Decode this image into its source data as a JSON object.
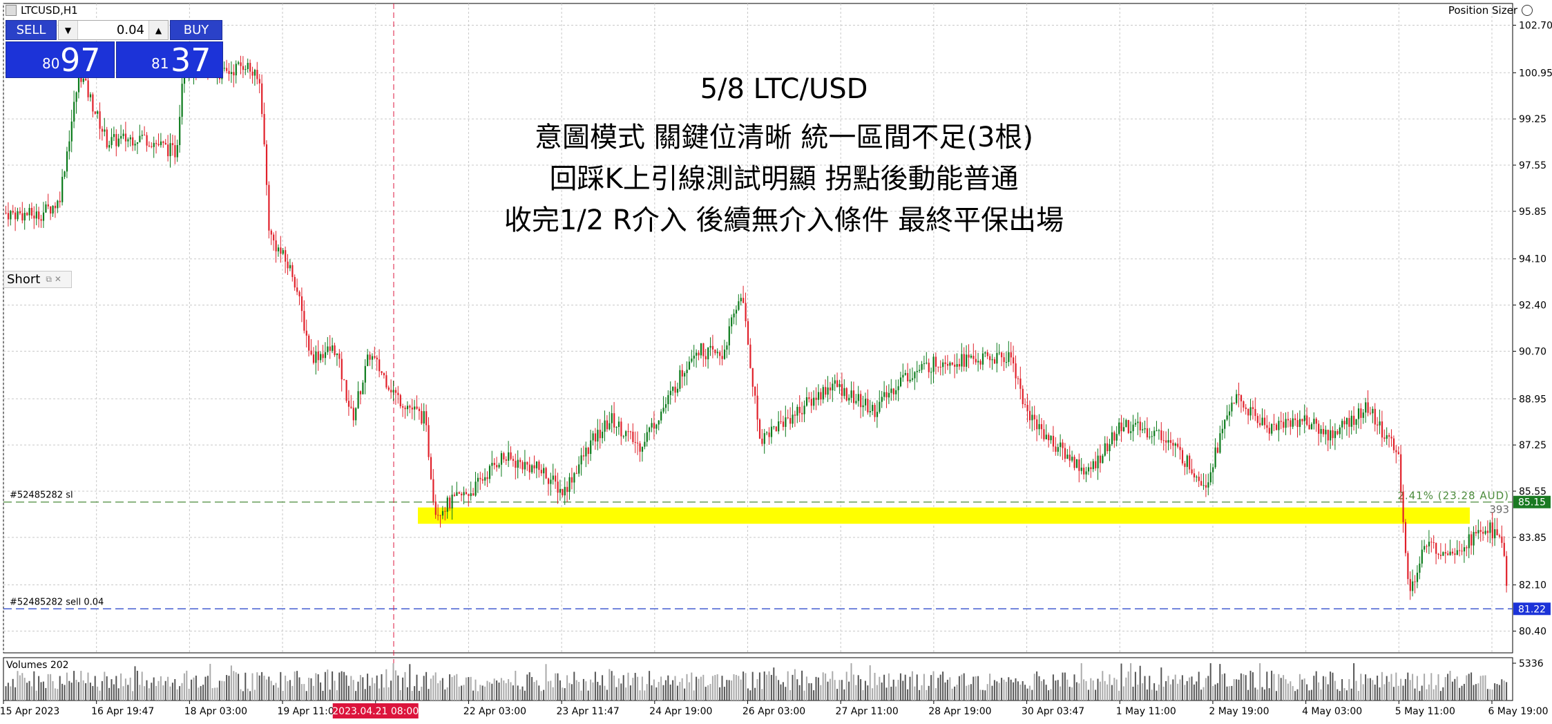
{
  "header": {
    "symbol_label": "LTCUSD,H1",
    "position_sizer_label": "Position Sizer"
  },
  "trade_panel": {
    "sell_label": "SELL",
    "buy_label": "BUY",
    "lot_value": "0.04",
    "bid_small": "80",
    "bid_big": "97",
    "ask_small": "81",
    "ask_big": "37",
    "color": "#1c33d8"
  },
  "short_label": "Short",
  "annotation": {
    "line1": "5/8 LTC/USD",
    "line2": "意圖模式 關鍵位清晰 統一區間不足(3根)",
    "line3": "回踩K上引線測試明顯 拐點後動能普通",
    "line4": "收完1/2 R介入 後續無介入條件 最終平保出場"
  },
  "order_lines": {
    "sl_label": "#52485282 sl",
    "sl_price": 85.15,
    "sell_label": "#52485282 sell 0.04",
    "sell_price": 81.22,
    "sl_info": "2.41% (23.28 AUD)",
    "sl_points": "393"
  },
  "highlight_zone": {
    "from": 84.95,
    "to": 84.35,
    "color": "#ffff00"
  },
  "volume_label": "Volumes 202",
  "volume_axis_label": "5336",
  "vertical_line_label": "2023.04.21 08:00",
  "chart_data": {
    "type": "candlestick",
    "ylim": [
      79.6,
      103.5
    ],
    "y_ticks": [
      102.7,
      100.95,
      99.25,
      97.55,
      95.85,
      94.1,
      92.4,
      90.7,
      88.95,
      87.25,
      85.55,
      83.85,
      82.1,
      80.4
    ],
    "y_tick_labels": [
      "102.70",
      "100.95",
      "99.25",
      "97.55",
      "95.85",
      "94.10",
      "92.40",
      "90.70",
      "88.95",
      "87.25",
      "85.55",
      "83.85",
      "82.10",
      "80.40"
    ],
    "x_tick_labels": [
      "15 Apr 2023",
      "16 Apr 19:47",
      "18 Apr 03:00",
      "19 Apr 11:00",
      "2023.04.21 08:00",
      "22 Apr 03:00",
      "23 Apr 11:47",
      "24 Apr 19:00",
      "26 Apr 03:00",
      "27 Apr 11:00",
      "28 Apr 19:00",
      "30 Apr 03:47",
      "1 May 11:00",
      "2 May 19:00",
      "4 May 03:00",
      "5 May 11:00",
      "6 May 19:00"
    ],
    "price_path": [
      {
        "x": 0,
        "y": 95.8
      },
      {
        "x": 50,
        "y": 95.7
      },
      {
        "x": 80,
        "y": 96.2
      },
      {
        "x": 110,
        "y": 101.0
      },
      {
        "x": 150,
        "y": 98.4
      },
      {
        "x": 200,
        "y": 98.6
      },
      {
        "x": 250,
        "y": 98.0
      },
      {
        "x": 260,
        "y": 101.2
      },
      {
        "x": 320,
        "y": 100.9
      },
      {
        "x": 350,
        "y": 101.3
      },
      {
        "x": 372,
        "y": 100.5
      },
      {
        "x": 385,
        "y": 95.0
      },
      {
        "x": 420,
        "y": 93.5
      },
      {
        "x": 445,
        "y": 90.5
      },
      {
        "x": 480,
        "y": 90.8
      },
      {
        "x": 505,
        "y": 88.2
      },
      {
        "x": 530,
        "y": 90.6
      },
      {
        "x": 570,
        "y": 89.0
      },
      {
        "x": 610,
        "y": 88.2
      },
      {
        "x": 625,
        "y": 84.8
      },
      {
        "x": 680,
        "y": 85.6
      },
      {
        "x": 720,
        "y": 86.8
      },
      {
        "x": 780,
        "y": 86.3
      },
      {
        "x": 810,
        "y": 85.5
      },
      {
        "x": 850,
        "y": 87.3
      },
      {
        "x": 880,
        "y": 88.2
      },
      {
        "x": 920,
        "y": 87.2
      },
      {
        "x": 960,
        "y": 88.8
      },
      {
        "x": 1000,
        "y": 90.8
      },
      {
        "x": 1040,
        "y": 90.5
      },
      {
        "x": 1068,
        "y": 92.9
      },
      {
        "x": 1095,
        "y": 87.5
      },
      {
        "x": 1150,
        "y": 88.5
      },
      {
        "x": 1200,
        "y": 89.5
      },
      {
        "x": 1260,
        "y": 88.5
      },
      {
        "x": 1300,
        "y": 89.7
      },
      {
        "x": 1360,
        "y": 90.4
      },
      {
        "x": 1420,
        "y": 90.4
      },
      {
        "x": 1460,
        "y": 90.5
      },
      {
        "x": 1480,
        "y": 88.5
      },
      {
        "x": 1520,
        "y": 87.3
      },
      {
        "x": 1570,
        "y": 86.2
      },
      {
        "x": 1620,
        "y": 88.0
      },
      {
        "x": 1680,
        "y": 87.6
      },
      {
        "x": 1740,
        "y": 85.8
      },
      {
        "x": 1780,
        "y": 89.0
      },
      {
        "x": 1830,
        "y": 87.9
      },
      {
        "x": 1880,
        "y": 88.2
      },
      {
        "x": 1920,
        "y": 87.6
      },
      {
        "x": 1975,
        "y": 88.6
      },
      {
        "x": 2000,
        "y": 87.6
      },
      {
        "x": 2020,
        "y": 86.8
      },
      {
        "x": 2035,
        "y": 81.6
      },
      {
        "x": 2055,
        "y": 83.5
      },
      {
        "x": 2100,
        "y": 83.4
      },
      {
        "x": 2150,
        "y": 84.2
      },
      {
        "x": 2170,
        "y": 83.8
      },
      {
        "x": 2178,
        "y": 81.2
      }
    ]
  }
}
